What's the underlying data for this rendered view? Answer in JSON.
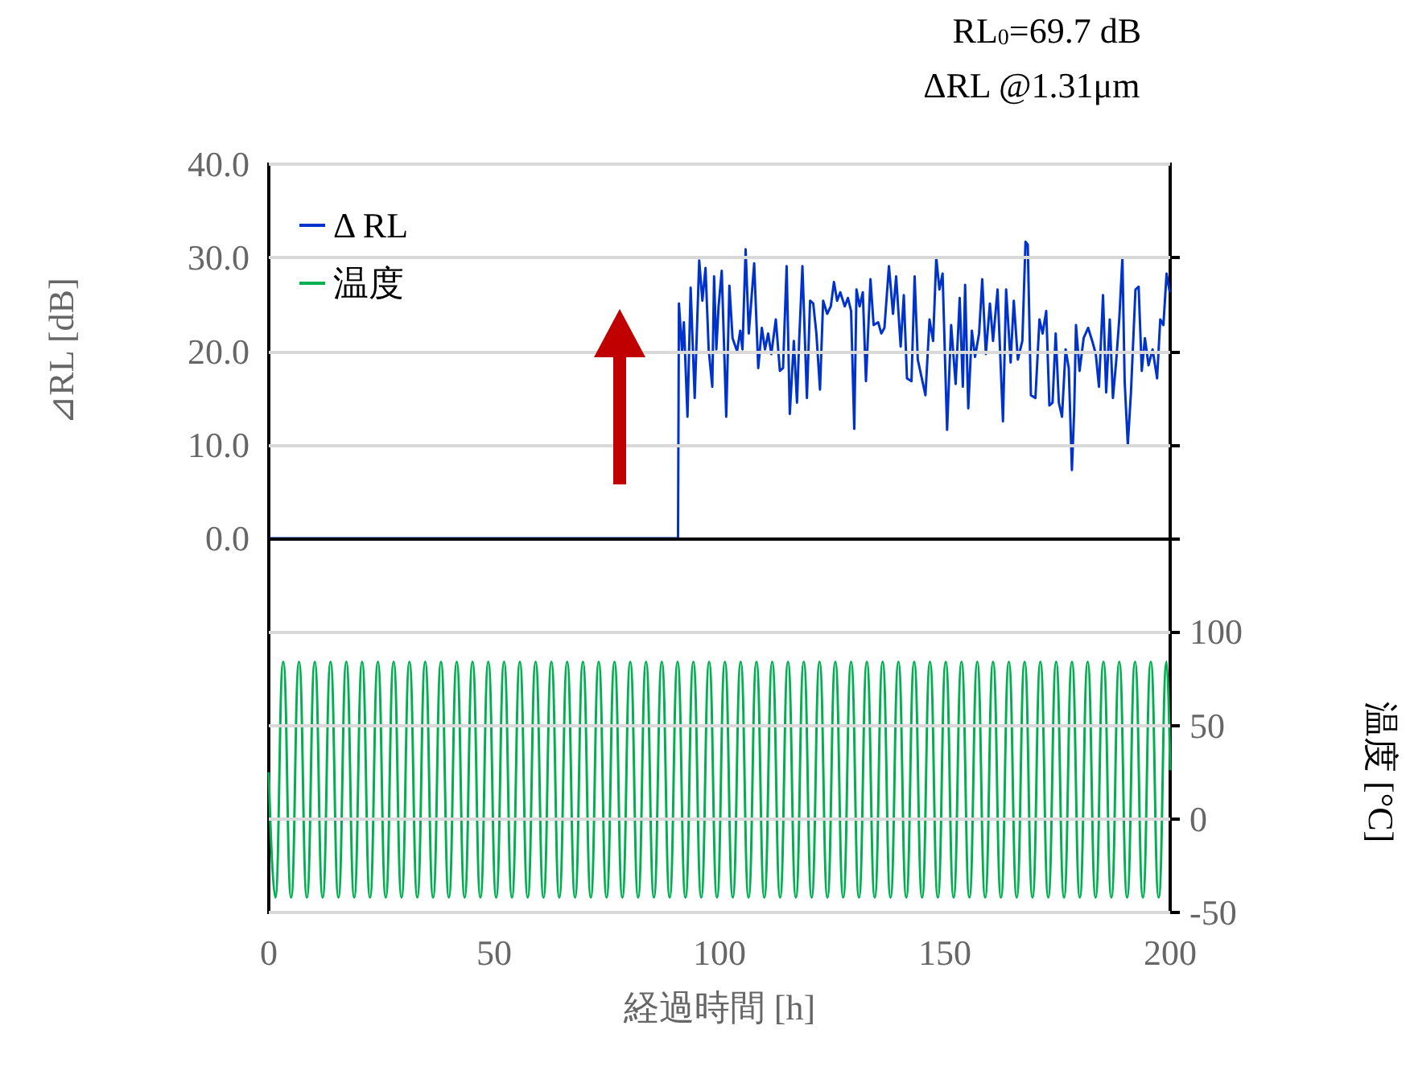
{
  "chart_data": {
    "type": "line",
    "annotations": [
      "RL$_{0}$=69.7 dB",
      "ΔRL @1.31μm"
    ],
    "xlabel": "経過時間 [h]",
    "ylabel": "⊿RL [dB]",
    "y2label": "温度 [°C]",
    "xlim": [
      0,
      200
    ],
    "xticks": [
      0,
      50,
      100,
      150,
      200
    ],
    "ylim": [
      -40,
      40
    ],
    "yticks": [
      {
        "value": 0,
        "label": "0.0"
      },
      {
        "value": 10,
        "label": "10.0"
      },
      {
        "value": 20,
        "label": "20.0"
      },
      {
        "value": 30,
        "label": "30.0"
      },
      {
        "value": 40,
        "label": "40.0"
      }
    ],
    "y2lim": [
      -50,
      350
    ],
    "y2ticks": [
      -50,
      0,
      50,
      100,
      {
        "value": 150,
        "label": null
      },
      {
        "value": 200,
        "label": null
      },
      {
        "value": 250,
        "label": null
      },
      {
        "value": 300,
        "label": null
      }
    ],
    "grid": true,
    "legend": "top left",
    "marker": "none",
    "ref_lines": [
      {
        "axis": "y",
        "value": 0,
        "color": "#000000"
      }
    ],
    "series": [
      {
        "name": "Δ RL",
        "color": "#0033cc",
        "x": [
          0,
          45,
          90.8,
          91.0,
          91.7,
          92.1,
          92.9,
          93.6,
          94.5,
          95.5,
          96.2,
          96.9,
          97.6,
          98.4,
          98.8,
          99.3,
          99.8,
          100.5,
          101.5,
          102.2,
          102.9,
          103.9,
          104.6,
          105.1,
          105.8,
          106.5,
          107.7,
          108.6,
          109.4,
          110.1,
          110.8,
          111.5,
          112.5,
          113.4,
          114.1,
          114.9,
          115.6,
          116.5,
          117.2,
          117.7,
          118.4,
          119.4,
          120.1,
          120.8,
          121.5,
          122.3,
          123.0,
          123.9,
          124.7,
          125.4,
          126.1,
          126.8,
          127.8,
          128.5,
          129.2,
          129.9,
          130.4,
          131.1,
          131.8,
          132.5,
          133.5,
          134.2,
          135.2,
          135.9,
          136.6,
          137.6,
          138.5,
          139.2,
          140.2,
          140.9,
          141.6,
          142.6,
          143.3,
          144.0,
          145.7,
          146.6,
          147.4,
          148.1,
          148.8,
          149.5,
          150.5,
          151.4,
          152.4,
          153.3,
          154.0,
          154.5,
          155.2,
          156.0,
          156.7,
          157.6,
          158.3,
          159.1,
          160.0,
          160.7,
          161.7,
          162.9,
          163.6,
          164.6,
          165.3,
          166.2,
          167.2,
          167.9,
          168.4,
          169.1,
          170.1,
          171.0,
          171.7,
          172.5,
          173.2,
          173.9,
          174.6,
          175.3,
          176.0,
          176.8,
          177.5,
          178.2,
          178.7,
          179.1,
          179.9,
          180.8,
          181.8,
          182.7,
          183.5,
          184.2,
          185.1,
          185.8,
          186.6,
          187.3,
          188.0,
          188.7,
          189.4,
          189.9,
          190.6,
          191.3,
          192.3,
          193.0,
          193.7,
          194.4,
          195.2,
          196.1,
          197.1,
          197.8,
          198.5,
          199.2,
          199.9
        ],
        "values": [
          0,
          0,
          0,
          25.1,
          20,
          23.1,
          13,
          26.8,
          15,
          29.7,
          25.4,
          28.9,
          20.2,
          16.2,
          28,
          20.2,
          24.8,
          28.6,
          13,
          27,
          21.4,
          20,
          22.2,
          20.2,
          30.9,
          21.9,
          29.4,
          18.2,
          22.5,
          20.2,
          21.9,
          19.7,
          23.4,
          17.9,
          18.2,
          29.1,
          13.3,
          21.1,
          14.5,
          21.4,
          29.1,
          15,
          25.4,
          25.1,
          21.9,
          15.9,
          25.4,
          24,
          24.8,
          27.4,
          25.4,
          26.3,
          24.8,
          25.7,
          24.3,
          11.7,
          26.6,
          24.8,
          26.3,
          16.8,
          27.7,
          22.8,
          23.1,
          21.9,
          22.5,
          29.1,
          24,
          28,
          20.5,
          26,
          17.1,
          16.8,
          28,
          19.1,
          15.3,
          23.4,
          21.1,
          30,
          26.6,
          28.3,
          11.6,
          22.8,
          16.5,
          25.7,
          16.2,
          27.1,
          13.9,
          22.2,
          19.4,
          21.9,
          27.7,
          19.7,
          25.1,
          21.1,
          26.6,
          12.5,
          26.6,
          18.8,
          25.4,
          19.1,
          21.1,
          31.7,
          31.4,
          15.3,
          15,
          23.4,
          21.9,
          24.3,
          14.2,
          14.5,
          21.9,
          14.5,
          13,
          20.2,
          18.2,
          7.3,
          13.6,
          22.8,
          17.9,
          21.4,
          22.5,
          21.1,
          19.7,
          16.2,
          26,
          15.6,
          23.4,
          15,
          18.8,
          23.4,
          30,
          16.8,
          10,
          15.6,
          26.6,
          26.9,
          17.9,
          21.4,
          18.5,
          20.2,
          17.1,
          23.4,
          22.8,
          28.3,
          26.3
        ]
      },
      {
        "name": "温度",
        "color": "#00b050",
        "axis": "y2",
        "x": [
          0,
          1.45,
          3.2,
          4.95,
          6.7,
          8.45,
          10.2,
          11.95,
          13.7,
          15.45,
          17.2,
          18.95,
          20.7,
          22.45,
          24.2,
          25.95,
          27.7,
          29.45,
          31.2,
          32.95,
          34.7,
          36.45,
          38.2,
          39.95,
          41.7,
          43.45,
          45.2,
          46.95,
          48.7,
          50.45,
          52.2,
          53.95,
          55.7,
          57.45,
          59.2,
          60.95,
          62.7,
          64.45,
          66.2,
          67.95,
          69.7,
          71.45,
          73.2,
          74.95,
          76.7,
          78.45,
          80.2,
          81.95,
          83.7,
          85.45,
          87.2,
          88.95,
          90.7,
          92.45,
          94.2,
          95.95,
          97.7,
          99.45,
          101.2,
          102.95,
          104.7,
          106.45,
          108.2,
          109.95,
          111.7,
          113.45,
          115.2,
          116.95,
          118.7,
          120.45,
          122.2,
          123.95,
          125.7,
          127.45,
          129.2,
          130.95,
          132.7,
          134.45,
          136.2,
          137.95,
          139.7,
          141.45,
          143.2,
          144.95,
          146.7,
          148.45,
          150.2,
          151.95,
          153.7,
          155.45,
          157.2,
          158.95,
          160.7,
          162.45,
          164.2,
          165.95,
          167.7,
          169.45,
          171.2,
          172.95,
          174.7,
          176.45,
          178.2,
          179.95,
          181.7,
          183.45,
          185.2,
          186.95,
          188.7,
          190.45,
          192.2,
          193.95,
          195.7,
          197.45,
          199.2,
          200
        ],
        "values": [
          25,
          -42,
          84,
          -42,
          84,
          -42,
          84,
          -42,
          84,
          -42,
          84,
          -42,
          84,
          -42,
          84,
          -42,
          84,
          -42,
          84,
          -42,
          84,
          -42,
          84,
          -42,
          84,
          -42,
          84,
          -42,
          84,
          -42,
          84,
          -42,
          84,
          -42,
          84,
          -42,
          84,
          -42,
          84,
          -42,
          84,
          -42,
          84,
          -42,
          84,
          -42,
          84,
          -42,
          84,
          -42,
          84,
          -42,
          84,
          -42,
          84,
          -42,
          84,
          -42,
          84,
          -42,
          84,
          -42,
          84,
          -42,
          84,
          -42,
          84,
          -42,
          84,
          -42,
          84,
          -42,
          84,
          -42,
          84,
          -42,
          84,
          -42,
          84,
          -42,
          84,
          -42,
          84,
          -42,
          84,
          -42,
          84,
          -42,
          84,
          -42,
          84,
          -42,
          84,
          -42,
          84,
          -42,
          84,
          -42,
          84,
          -42,
          84,
          -42,
          84,
          -42,
          84,
          -42,
          84,
          -42,
          84,
          -42,
          84,
          -42,
          84,
          -42,
          84,
          26
        ]
      }
    ]
  }
}
